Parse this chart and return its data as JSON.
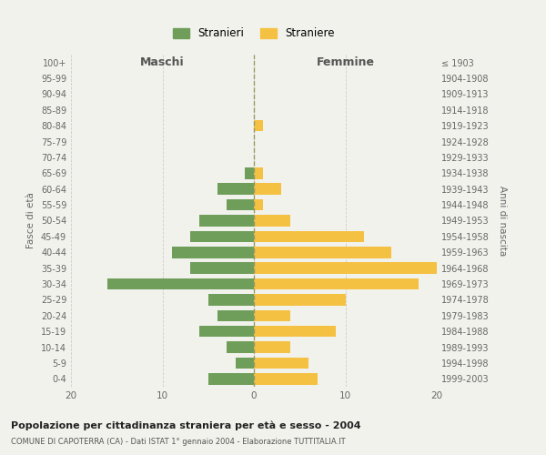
{
  "age_groups": [
    "0-4",
    "5-9",
    "10-14",
    "15-19",
    "20-24",
    "25-29",
    "30-34",
    "35-39",
    "40-44",
    "45-49",
    "50-54",
    "55-59",
    "60-64",
    "65-69",
    "70-74",
    "75-79",
    "80-84",
    "85-89",
    "90-94",
    "95-99",
    "100+"
  ],
  "birth_years": [
    "1999-2003",
    "1994-1998",
    "1989-1993",
    "1984-1988",
    "1979-1983",
    "1974-1978",
    "1969-1973",
    "1964-1968",
    "1959-1963",
    "1954-1958",
    "1949-1953",
    "1944-1948",
    "1939-1943",
    "1934-1938",
    "1929-1933",
    "1924-1928",
    "1919-1923",
    "1914-1918",
    "1909-1913",
    "1904-1908",
    "≤ 1903"
  ],
  "maschi": [
    5,
    2,
    3,
    6,
    4,
    5,
    16,
    7,
    9,
    7,
    6,
    3,
    4,
    1,
    0,
    0,
    0,
    0,
    0,
    0,
    0
  ],
  "femmine": [
    7,
    6,
    4,
    9,
    4,
    10,
    18,
    20,
    15,
    12,
    4,
    1,
    3,
    1,
    0,
    0,
    1,
    0,
    0,
    0,
    0
  ],
  "color_maschi": "#6f9e5b",
  "color_femmine": "#f5c143",
  "background_color": "#f2f2ed",
  "grid_color": "#cccccc",
  "title_main": "Popolazione per cittadinanza straniera per età e sesso - 2004",
  "title_sub": "COMUNE DI CAPOTERRA (CA) - Dati ISTAT 1° gennaio 2004 - Elaborazione TUTTITALIA.IT",
  "label_maschi": "Maschi",
  "label_femmine": "Femmine",
  "label_fasce": "Fasce di età",
  "label_anni": "Anni di nascita",
  "legend_stranieri": "Stranieri",
  "legend_straniere": "Straniere",
  "xlim": 20
}
